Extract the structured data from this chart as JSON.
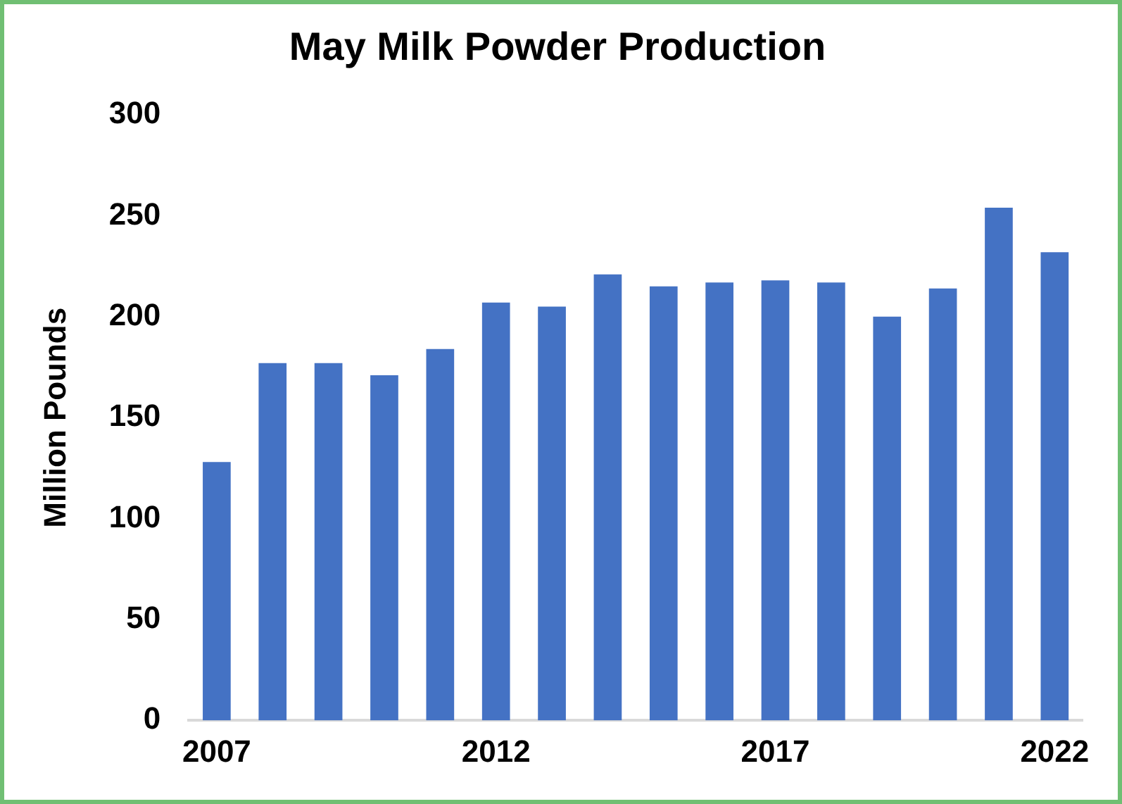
{
  "chart_data": {
    "type": "bar",
    "title": "May Milk Powder Production",
    "ylabel": "Million Pounds",
    "categories": [
      "2007",
      null,
      null,
      null,
      null,
      "2012",
      null,
      null,
      null,
      null,
      "2017",
      null,
      null,
      null,
      null,
      "2022"
    ],
    "values": [
      128,
      177,
      177,
      171,
      184,
      207,
      205,
      221,
      215,
      217,
      218,
      217,
      200,
      214,
      254,
      232
    ],
    "color": "#4472c4",
    "ylim": [
      0,
      300
    ],
    "yticks": [
      0,
      50,
      100,
      150,
      200,
      250,
      300
    ],
    "grid": false,
    "legend": false
  }
}
